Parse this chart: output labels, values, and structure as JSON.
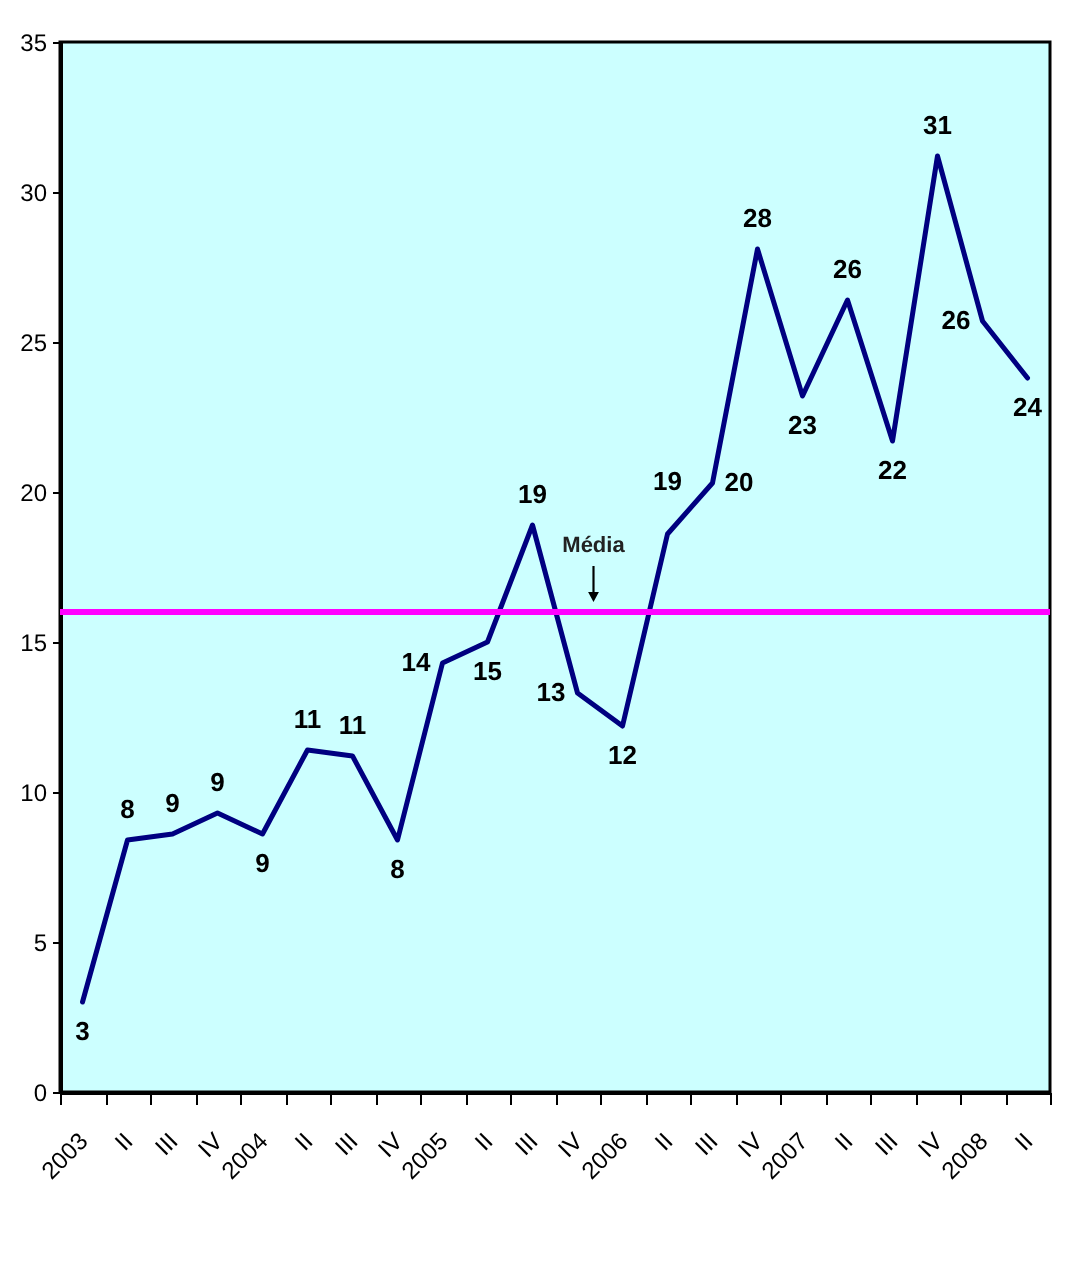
{
  "chart_data": {
    "type": "line",
    "categories": [
      "2003",
      "II",
      "III",
      "IV",
      "2004",
      "II",
      "III",
      "IV",
      "2005",
      "II",
      "III",
      "IV",
      "2006",
      "II",
      "III",
      "IV",
      "2007",
      "II",
      "III",
      "IV",
      "2008",
      "II"
    ],
    "values": [
      3.0,
      8.4,
      8.6,
      9.3,
      8.6,
      11.4,
      11.2,
      8.4,
      14.3,
      15.0,
      18.9,
      13.3,
      12.2,
      18.6,
      20.3,
      28.1,
      23.2,
      26.4,
      21.7,
      31.2,
      25.7,
      23.8
    ],
    "value_labels": [
      "3",
      "8",
      "9",
      "9",
      "9",
      "11",
      "11",
      "8",
      "14",
      "15",
      "19",
      "13",
      "12",
      "19",
      "20",
      "28",
      "23",
      "26",
      "22",
      "31",
      "26",
      "24"
    ],
    "color": "#000080",
    "ylim": [
      0,
      35
    ],
    "yticks": [
      0,
      5,
      10,
      15,
      20,
      25,
      30,
      35
    ],
    "ref_lines": [
      {
        "axis": "y",
        "value": 16,
        "label": "Média",
        "color": "#ff00ff"
      }
    ]
  }
}
